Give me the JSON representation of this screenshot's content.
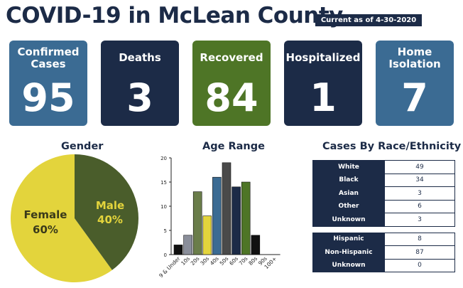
{
  "header": {
    "title": "COVID-19 in McLean County",
    "as_of": "Current as of 4-30-2020"
  },
  "stats": [
    {
      "label": "Confirmed Cases",
      "value": "95",
      "color": "#3b6b93"
    },
    {
      "label": "Deaths",
      "value": "3",
      "color": "#1c2b47"
    },
    {
      "label": "Recovered",
      "value": "84",
      "color": "#4e7526"
    },
    {
      "label": "Hospitalized",
      "value": "1",
      "color": "#1c2b47"
    },
    {
      "label": "Home Isolation",
      "value": "7",
      "color": "#3b6b93"
    }
  ],
  "sections": {
    "gender": "Gender",
    "age": "Age Range",
    "race": "Cases By Race/Ethnicity"
  },
  "gender": {
    "female_label": "Female",
    "female_pct": "60%",
    "male_label": "Male",
    "male_pct": "40%"
  },
  "race_table": {
    "group1": [
      {
        "label": "White",
        "value": "49"
      },
      {
        "label": "Black",
        "value": "34"
      },
      {
        "label": "Asian",
        "value": "3"
      },
      {
        "label": "Other",
        "value": "6"
      },
      {
        "label": "Unknown",
        "value": "3"
      }
    ],
    "group2": [
      {
        "label": "Hispanic",
        "value": "8"
      },
      {
        "label": "Non-Hispanic",
        "value": "87"
      },
      {
        "label": "Unknown",
        "value": "0"
      }
    ]
  },
  "colors": {
    "navy": "#1c2b47",
    "steel": "#3b6b93",
    "green": "#4e7526",
    "olive": "#4a5d2b",
    "yellow": "#e3d43c"
  },
  "chart_data": [
    {
      "type": "pie",
      "title": "Gender",
      "labels": [
        "Female",
        "Male"
      ],
      "values": [
        60,
        40
      ],
      "colors": [
        "#e3d43c",
        "#4a5d2b"
      ]
    },
    {
      "type": "bar",
      "title": "Age Range",
      "categories": [
        "9 & Under",
        "10s",
        "20s",
        "30s",
        "40s",
        "50s",
        "60s",
        "70s",
        "80s",
        "90s",
        "100+"
      ],
      "values": [
        2,
        4,
        13,
        8,
        16,
        19,
        14,
        15,
        4,
        0,
        0
      ],
      "colors": [
        "#111111",
        "#8a8e9a",
        "#6a7d4a",
        "#e3d43c",
        "#3b6b93",
        "#4a4a4a",
        "#1c2b47",
        "#4e7526",
        "#111111",
        "#111111",
        "#111111"
      ],
      "ylim": [
        0,
        20
      ],
      "yticks": [
        0,
        5,
        10,
        15,
        20
      ]
    },
    {
      "type": "table",
      "title": "Cases By Race/Ethnicity",
      "rows": [
        [
          "White",
          49
        ],
        [
          "Black",
          34
        ],
        [
          "Asian",
          3
        ],
        [
          "Other",
          6
        ],
        [
          "Unknown",
          3
        ],
        [
          "Hispanic",
          8
        ],
        [
          "Non-Hispanic",
          87
        ],
        [
          "Unknown",
          0
        ]
      ]
    }
  ]
}
